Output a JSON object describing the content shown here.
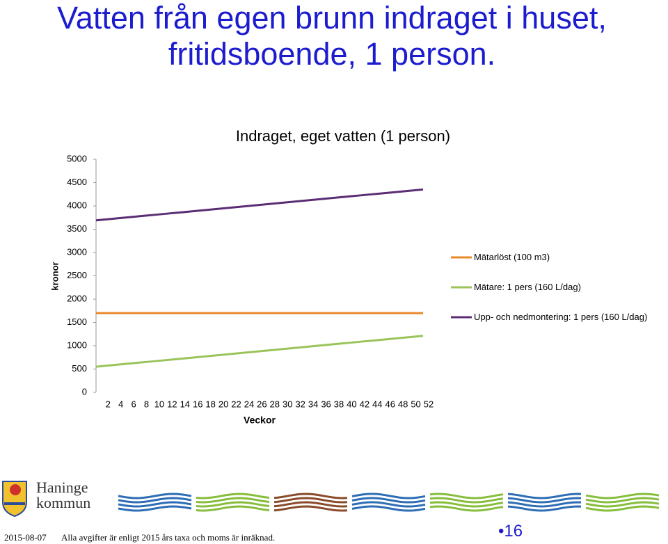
{
  "slide": {
    "title": "Vatten från egen brunn indraget i huset, fritidsboende, 1 person.",
    "logo": "Haninge kommun",
    "footer_date": "2015-08-07",
    "footer_note": "Alla avgifter är enligt 2015 års taxa och moms är inräknad.",
    "page_number": "•16"
  },
  "chart_data": {
    "type": "line",
    "title": "Indraget, eget vatten (1 person)",
    "xlabel": "Veckor",
    "ylabel": "kronor",
    "x": [
      1,
      2,
      3,
      4,
      5,
      6,
      7,
      8,
      9,
      10,
      11,
      12,
      13,
      14,
      15,
      16,
      17,
      18,
      19,
      20,
      21,
      22,
      23,
      24,
      25,
      26,
      27,
      28,
      29,
      30,
      31,
      32,
      33,
      34,
      35,
      36,
      37,
      38,
      39,
      40,
      41,
      42,
      43,
      44,
      45,
      46,
      47,
      48,
      49,
      50,
      51,
      52
    ],
    "xlim": [
      1,
      52
    ],
    "xticks": [
      2,
      4,
      6,
      8,
      10,
      12,
      14,
      16,
      18,
      20,
      22,
      24,
      26,
      28,
      30,
      32,
      34,
      36,
      38,
      40,
      42,
      44,
      46,
      48,
      50,
      52
    ],
    "ylim": [
      0,
      5000
    ],
    "yticks": [
      0,
      500,
      1000,
      1500,
      2000,
      2500,
      3000,
      3500,
      4000,
      4500,
      5000
    ],
    "grid": false,
    "legend": "right",
    "series": [
      {
        "name": "Mätarlöst (100 m3)",
        "color": "#e8892a",
        "values": [
          1700,
          1700,
          1700,
          1700,
          1700,
          1700,
          1700,
          1700,
          1700,
          1700,
          1700,
          1700,
          1700,
          1700,
          1700,
          1700,
          1700,
          1700,
          1700,
          1700,
          1700,
          1700,
          1700,
          1700,
          1700,
          1700,
          1700,
          1700,
          1700,
          1700,
          1700,
          1700,
          1700,
          1700,
          1700,
          1700,
          1700,
          1700,
          1700,
          1700,
          1700,
          1700,
          1700,
          1700,
          1700,
          1700,
          1700,
          1700,
          1700,
          1700,
          1700,
          1700
        ]
      },
      {
        "name": "Mätare: 1 pers (160 L/dag)",
        "color": "#9ac45a",
        "values": [
          550,
          563,
          576,
          589,
          602,
          615,
          628,
          641,
          654,
          667,
          680,
          693,
          706,
          719,
          732,
          745,
          758,
          771,
          784,
          797,
          810,
          823,
          836,
          849,
          862,
          875,
          888,
          901,
          914,
          927,
          940,
          953,
          966,
          979,
          992,
          1005,
          1018,
          1031,
          1044,
          1057,
          1070,
          1083,
          1096,
          1109,
          1122,
          1135,
          1148,
          1161,
          1174,
          1187,
          1200,
          1213
        ]
      },
      {
        "name": "Upp- och nedmontering: 1 pers (160 L/dag)",
        "color": "#5b2d74",
        "values": [
          3690,
          3703,
          3716,
          3729,
          3742,
          3755,
          3768,
          3781,
          3794,
          3807,
          3820,
          3833,
          3846,
          3859,
          3872,
          3885,
          3898,
          3911,
          3924,
          3937,
          3950,
          3963,
          3976,
          3989,
          4002,
          4015,
          4028,
          4041,
          4054,
          4067,
          4080,
          4093,
          4106,
          4119,
          4132,
          4145,
          4158,
          4171,
          4184,
          4197,
          4210,
          4223,
          4236,
          4249,
          4262,
          4275,
          4288,
          4301,
          4314,
          4327,
          4340,
          4353
        ]
      }
    ]
  }
}
